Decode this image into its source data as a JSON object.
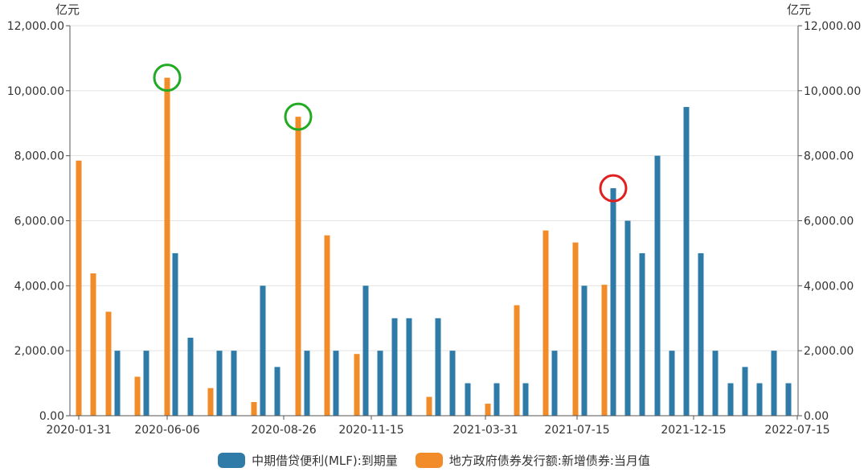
{
  "chart_data": {
    "type": "bar",
    "left_axis_unit": "亿元",
    "right_axis_unit": "亿元",
    "ylim": [
      0,
      12000
    ],
    "y_ticks": [
      "12,000.00",
      "10,000.00",
      "8,000.00",
      "6,000.00",
      "4,000.00",
      "2,000.00",
      "0.00"
    ],
    "x_ticks": [
      "2020-01-31",
      "2020-06-06",
      "2020-08-26",
      "2020-11-15",
      "2021-03-31",
      "2021-07-15",
      "2021-12-15",
      "2022-07-15"
    ],
    "grid": true,
    "legend_position": "bottom",
    "series": [
      {
        "name": "中期借贷便利(MLF):到期量",
        "color": "#2e7ba8",
        "values": [
          2000,
          2000,
          5000,
          2400,
          2000,
          2000,
          4000,
          1500,
          2000,
          2000,
          4000,
          2000,
          3000,
          3000,
          3000,
          2000,
          1000,
          1000,
          1000,
          2000,
          4000,
          7000,
          6000,
          5000,
          8000,
          2000,
          9500,
          5000,
          2000,
          1000,
          1500,
          1000,
          2000,
          1000
        ]
      },
      {
        "name": "地方政府债券发行额:新增债券:当月值",
        "color": "#f28c28",
        "values": [
          7850,
          4380,
          3200,
          1200,
          10400,
          850,
          420,
          9200,
          5550,
          1900,
          580,
          370,
          3400,
          5700,
          5330,
          4030
        ]
      }
    ],
    "annotations": [
      {
        "shape": "circle",
        "color": "#22aa22",
        "target": "地方政府债券发行额:新增债券:当月值",
        "value": 10400
      },
      {
        "shape": "circle",
        "color": "#22aa22",
        "target": "地方政府债券发行额:新增债券:当月值",
        "value": 9200
      },
      {
        "shape": "circle",
        "color": "#e02020",
        "target": "中期借贷便利(MLF):到期量",
        "value": 7000
      }
    ]
  }
}
